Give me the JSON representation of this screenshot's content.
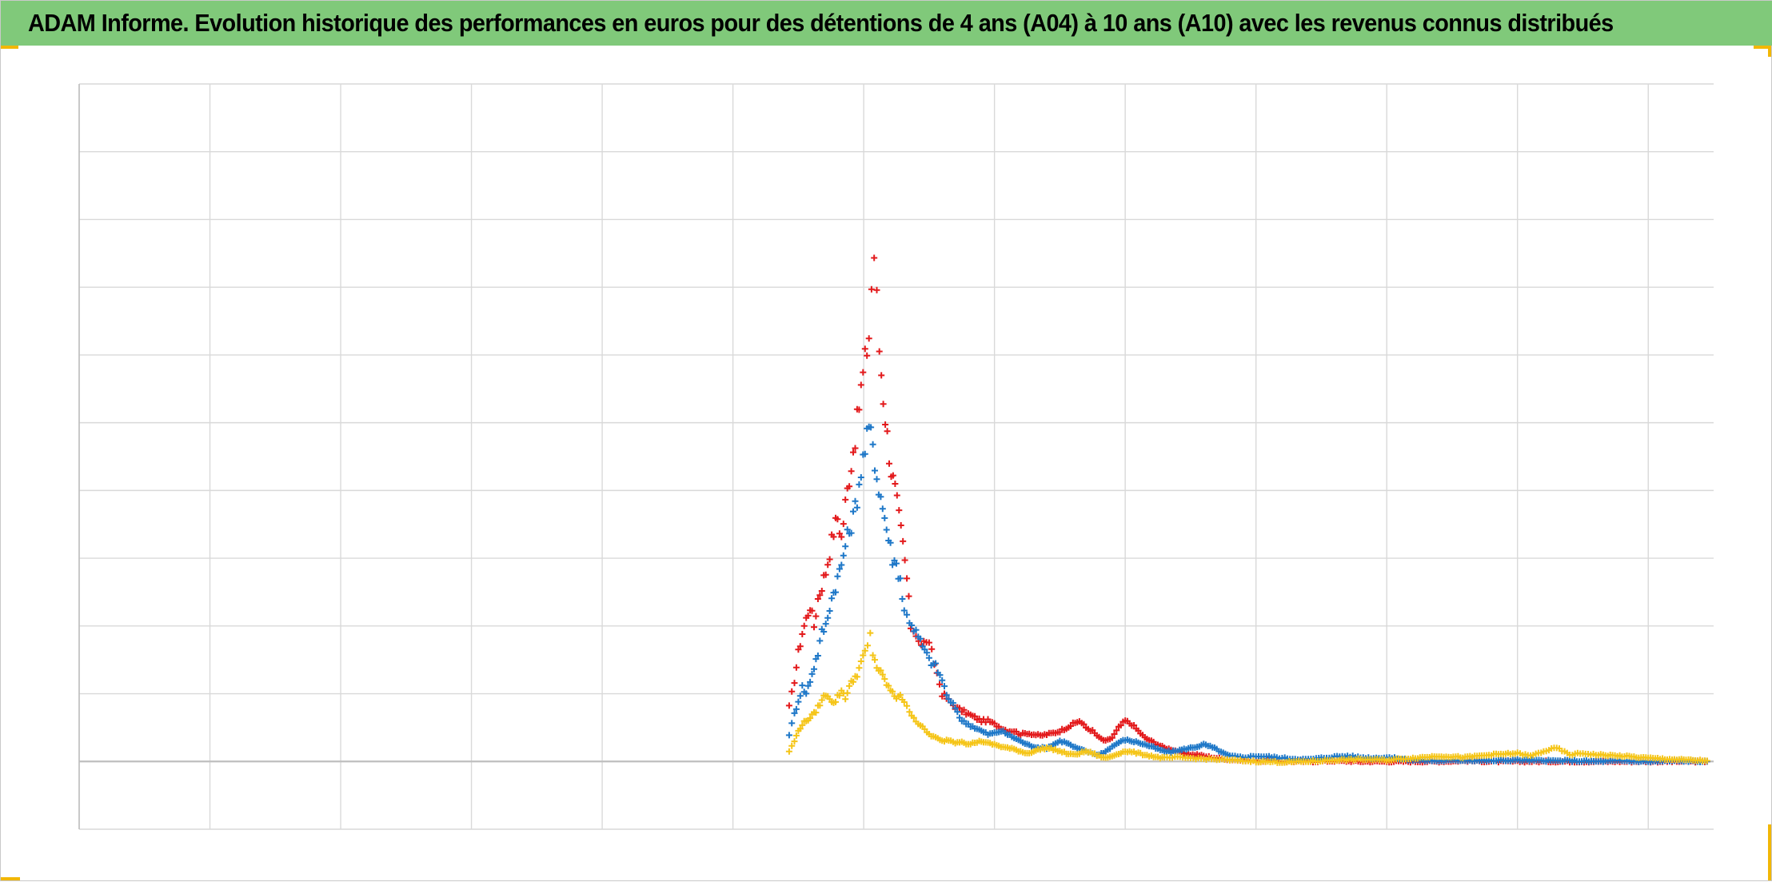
{
  "title": "ADAM Informe. Evolution historique des performances en euros pour des détentions de 4 ans (A04) à 10 ans (A10) avec les revenus connus distribués",
  "colors": {
    "title_background": "#80c97a",
    "grid": "#d9d9d9",
    "axis": "#bfbfbf",
    "accent_corner": "#f2b705"
  },
  "chart_data": {
    "type": "scatter",
    "marker": "plus",
    "grid": true,
    "legend": "none",
    "tick_labels": "none",
    "x_range": [
      0,
      12.5
    ],
    "y_range": [
      -1,
      10
    ],
    "x_gridlines": 12,
    "y_gridlines": 11,
    "zero_line_y": 0,
    "series": [
      {
        "color": "#e31a1c",
        "values": [
          [
            5.43,
            0.8
          ],
          [
            5.47,
            1.2
          ],
          [
            5.5,
            1.6
          ],
          [
            5.53,
            1.9
          ],
          [
            5.56,
            2.1
          ],
          [
            5.59,
            2.3
          ],
          [
            5.62,
            2.0
          ],
          [
            5.65,
            2.4
          ],
          [
            5.68,
            2.6
          ],
          [
            5.71,
            2.8
          ],
          [
            5.74,
            3.1
          ],
          [
            5.77,
            3.4
          ],
          [
            5.8,
            3.6
          ],
          [
            5.83,
            3.3
          ],
          [
            5.86,
            3.8
          ],
          [
            5.89,
            4.2
          ],
          [
            5.92,
            4.6
          ],
          [
            5.95,
            5.0
          ],
          [
            5.98,
            5.5
          ],
          [
            6.01,
            5.9
          ],
          [
            6.04,
            6.3
          ],
          [
            6.06,
            7.0
          ],
          [
            6.08,
            7.5
          ],
          [
            6.1,
            6.8
          ],
          [
            6.12,
            6.1
          ],
          [
            6.15,
            5.4
          ],
          [
            6.18,
            4.8
          ],
          [
            6.21,
            4.3
          ],
          [
            6.24,
            4.0
          ],
          [
            6.27,
            3.6
          ],
          [
            6.3,
            3.2
          ],
          [
            6.33,
            2.7
          ],
          [
            6.36,
            2.0
          ],
          [
            6.4,
            1.9
          ],
          [
            6.44,
            1.7
          ],
          [
            6.48,
            1.8
          ],
          [
            6.52,
            1.6
          ],
          [
            6.56,
            1.3
          ],
          [
            6.6,
            1.0
          ],
          [
            6.65,
            0.9
          ],
          [
            6.7,
            0.8
          ],
          [
            6.75,
            0.75
          ],
          [
            6.8,
            0.7
          ],
          [
            6.85,
            0.65
          ],
          [
            6.9,
            0.6
          ],
          [
            6.95,
            0.6
          ],
          [
            7.0,
            0.55
          ],
          [
            7.05,
            0.5
          ],
          [
            7.1,
            0.45
          ],
          [
            7.15,
            0.45
          ],
          [
            7.2,
            0.4
          ],
          [
            7.25,
            0.42
          ],
          [
            7.3,
            0.4
          ],
          [
            7.35,
            0.38
          ],
          [
            7.4,
            0.4
          ],
          [
            7.45,
            0.42
          ],
          [
            7.5,
            0.45
          ],
          [
            7.55,
            0.5
          ],
          [
            7.6,
            0.55
          ],
          [
            7.65,
            0.6
          ],
          [
            7.7,
            0.5
          ],
          [
            7.75,
            0.45
          ],
          [
            7.8,
            0.35
          ],
          [
            7.85,
            0.3
          ],
          [
            7.9,
            0.35
          ],
          [
            7.95,
            0.5
          ],
          [
            8.0,
            0.6
          ],
          [
            8.05,
            0.55
          ],
          [
            8.1,
            0.45
          ],
          [
            8.15,
            0.35
          ],
          [
            8.2,
            0.3
          ],
          [
            8.25,
            0.25
          ],
          [
            8.3,
            0.2
          ],
          [
            8.35,
            0.18
          ],
          [
            8.4,
            0.15
          ],
          [
            8.45,
            0.12
          ],
          [
            8.5,
            0.1
          ],
          [
            8.55,
            0.1
          ],
          [
            8.6,
            0.08
          ],
          [
            8.7,
            0.05
          ],
          [
            8.8,
            0.03
          ],
          [
            8.9,
            0.02
          ],
          [
            9.0,
            0.01
          ],
          [
            9.2,
            0.0
          ],
          [
            9.4,
            0.0
          ],
          [
            9.6,
            0.01
          ],
          [
            9.8,
            0.0
          ],
          [
            10.0,
            0.0
          ],
          [
            10.2,
            0.0
          ],
          [
            10.4,
            0.0
          ],
          [
            10.6,
            0.01
          ],
          [
            10.8,
            0.0
          ],
          [
            11.0,
            0.0
          ],
          [
            11.2,
            0.0
          ],
          [
            11.4,
            0.0
          ],
          [
            11.6,
            0.0
          ],
          [
            11.8,
            0.0
          ],
          [
            12.0,
            0.0
          ],
          [
            12.2,
            0.0
          ],
          [
            12.45,
            0.0
          ]
        ]
      },
      {
        "color": "#1f78c8",
        "values": [
          [
            5.43,
            0.4
          ],
          [
            5.47,
            0.7
          ],
          [
            5.5,
            0.9
          ],
          [
            5.53,
            1.1
          ],
          [
            5.56,
            1.0
          ],
          [
            5.59,
            1.2
          ],
          [
            5.62,
            1.4
          ],
          [
            5.65,
            1.6
          ],
          [
            5.68,
            1.9
          ],
          [
            5.71,
            2.0
          ],
          [
            5.74,
            2.3
          ],
          [
            5.77,
            2.5
          ],
          [
            5.8,
            2.7
          ],
          [
            5.83,
            2.9
          ],
          [
            5.86,
            3.2
          ],
          [
            5.89,
            3.4
          ],
          [
            5.92,
            3.6
          ],
          [
            5.95,
            3.9
          ],
          [
            5.98,
            4.3
          ],
          [
            6.01,
            4.6
          ],
          [
            6.04,
            4.9
          ],
          [
            6.07,
            4.7
          ],
          [
            6.1,
            4.2
          ],
          [
            6.13,
            3.9
          ],
          [
            6.16,
            3.6
          ],
          [
            6.19,
            3.3
          ],
          [
            6.22,
            3.0
          ],
          [
            6.25,
            2.9
          ],
          [
            6.28,
            2.7
          ],
          [
            6.31,
            2.2
          ],
          [
            6.35,
            2.1
          ],
          [
            6.4,
            1.9
          ],
          [
            6.45,
            1.7
          ],
          [
            6.5,
            1.5
          ],
          [
            6.55,
            1.4
          ],
          [
            6.6,
            1.2
          ],
          [
            6.65,
            0.9
          ],
          [
            6.7,
            0.8
          ],
          [
            6.75,
            0.6
          ],
          [
            6.8,
            0.55
          ],
          [
            6.85,
            0.5
          ],
          [
            6.9,
            0.45
          ],
          [
            6.95,
            0.4
          ],
          [
            7.0,
            0.42
          ],
          [
            7.05,
            0.45
          ],
          [
            7.1,
            0.4
          ],
          [
            7.15,
            0.35
          ],
          [
            7.2,
            0.3
          ],
          [
            7.25,
            0.25
          ],
          [
            7.3,
            0.22
          ],
          [
            7.35,
            0.2
          ],
          [
            7.4,
            0.2
          ],
          [
            7.45,
            0.25
          ],
          [
            7.5,
            0.3
          ],
          [
            7.55,
            0.28
          ],
          [
            7.6,
            0.22
          ],
          [
            7.65,
            0.18
          ],
          [
            7.7,
            0.15
          ],
          [
            7.75,
            0.12
          ],
          [
            7.8,
            0.1
          ],
          [
            7.85,
            0.15
          ],
          [
            7.9,
            0.22
          ],
          [
            7.95,
            0.28
          ],
          [
            8.0,
            0.32
          ],
          [
            8.05,
            0.3
          ],
          [
            8.1,
            0.28
          ],
          [
            8.15,
            0.25
          ],
          [
            8.2,
            0.22
          ],
          [
            8.25,
            0.18
          ],
          [
            8.3,
            0.15
          ],
          [
            8.35,
            0.14
          ],
          [
            8.4,
            0.16
          ],
          [
            8.45,
            0.18
          ],
          [
            8.5,
            0.2
          ],
          [
            8.55,
            0.22
          ],
          [
            8.6,
            0.25
          ],
          [
            8.65,
            0.22
          ],
          [
            8.7,
            0.18
          ],
          [
            8.75,
            0.12
          ],
          [
            8.8,
            0.08
          ],
          [
            8.9,
            0.06
          ],
          [
            9.0,
            0.08
          ],
          [
            9.1,
            0.07
          ],
          [
            9.2,
            0.05
          ],
          [
            9.3,
            0.04
          ],
          [
            9.4,
            0.03
          ],
          [
            9.5,
            0.05
          ],
          [
            9.6,
            0.07
          ],
          [
            9.7,
            0.08
          ],
          [
            9.8,
            0.06
          ],
          [
            9.9,
            0.05
          ],
          [
            10.0,
            0.06
          ],
          [
            10.1,
            0.04
          ],
          [
            10.2,
            0.02
          ],
          [
            10.4,
            0.01
          ],
          [
            10.6,
            0.02
          ],
          [
            10.8,
            0.01
          ],
          [
            11.0,
            0.02
          ],
          [
            11.2,
            0.01
          ],
          [
            11.4,
            0.01
          ],
          [
            11.6,
            0.0
          ],
          [
            11.8,
            0.01
          ],
          [
            12.0,
            0.0
          ],
          [
            12.2,
            0.01
          ],
          [
            12.45,
            0.0
          ]
        ]
      },
      {
        "color": "#f5c518",
        "values": [
          [
            5.43,
            0.15
          ],
          [
            5.47,
            0.3
          ],
          [
            5.5,
            0.45
          ],
          [
            5.53,
            0.55
          ],
          [
            5.56,
            0.6
          ],
          [
            5.59,
            0.65
          ],
          [
            5.62,
            0.7
          ],
          [
            5.65,
            0.8
          ],
          [
            5.68,
            0.9
          ],
          [
            5.71,
            1.0
          ],
          [
            5.74,
            0.95
          ],
          [
            5.77,
            0.85
          ],
          [
            5.8,
            0.95
          ],
          [
            5.83,
            1.05
          ],
          [
            5.86,
            0.95
          ],
          [
            5.89,
            1.1
          ],
          [
            5.92,
            1.2
          ],
          [
            5.95,
            1.3
          ],
          [
            5.98,
            1.45
          ],
          [
            6.01,
            1.6
          ],
          [
            6.03,
            1.7
          ],
          [
            6.05,
            1.85
          ],
          [
            6.07,
            1.6
          ],
          [
            6.1,
            1.4
          ],
          [
            6.13,
            1.3
          ],
          [
            6.16,
            1.2
          ],
          [
            6.19,
            1.1
          ],
          [
            6.22,
            1.0
          ],
          [
            6.25,
            0.95
          ],
          [
            6.28,
            1.0
          ],
          [
            6.31,
            0.85
          ],
          [
            6.35,
            0.75
          ],
          [
            6.4,
            0.6
          ],
          [
            6.45,
            0.5
          ],
          [
            6.5,
            0.4
          ],
          [
            6.55,
            0.35
          ],
          [
            6.6,
            0.3
          ],
          [
            6.65,
            0.32
          ],
          [
            6.7,
            0.28
          ],
          [
            6.75,
            0.3
          ],
          [
            6.8,
            0.25
          ],
          [
            6.85,
            0.28
          ],
          [
            6.9,
            0.3
          ],
          [
            6.95,
            0.27
          ],
          [
            7.0,
            0.25
          ],
          [
            7.05,
            0.22
          ],
          [
            7.1,
            0.2
          ],
          [
            7.15,
            0.18
          ],
          [
            7.2,
            0.15
          ],
          [
            7.25,
            0.12
          ],
          [
            7.3,
            0.15
          ],
          [
            7.35,
            0.18
          ],
          [
            7.4,
            0.2
          ],
          [
            7.45,
            0.18
          ],
          [
            7.5,
            0.15
          ],
          [
            7.55,
            0.12
          ],
          [
            7.6,
            0.1
          ],
          [
            7.65,
            0.12
          ],
          [
            7.7,
            0.15
          ],
          [
            7.75,
            0.12
          ],
          [
            7.8,
            0.08
          ],
          [
            7.85,
            0.05
          ],
          [
            7.9,
            0.08
          ],
          [
            7.95,
            0.12
          ],
          [
            8.0,
            0.15
          ],
          [
            8.05,
            0.14
          ],
          [
            8.1,
            0.12
          ],
          [
            8.15,
            0.1
          ],
          [
            8.2,
            0.08
          ],
          [
            8.25,
            0.06
          ],
          [
            8.3,
            0.05
          ],
          [
            8.4,
            0.06
          ],
          [
            8.5,
            0.05
          ],
          [
            8.6,
            0.04
          ],
          [
            8.7,
            0.03
          ],
          [
            8.8,
            0.02
          ],
          [
            8.9,
            0.01
          ],
          [
            9.0,
            0.0
          ],
          [
            9.2,
            -0.01
          ],
          [
            9.4,
            0.0
          ],
          [
            9.6,
            0.02
          ],
          [
            9.8,
            0.03
          ],
          [
            10.0,
            0.02
          ],
          [
            10.2,
            0.05
          ],
          [
            10.4,
            0.08
          ],
          [
            10.6,
            0.06
          ],
          [
            10.8,
            0.1
          ],
          [
            11.0,
            0.12
          ],
          [
            11.1,
            0.08
          ],
          [
            11.2,
            0.15
          ],
          [
            11.3,
            0.2
          ],
          [
            11.4,
            0.1
          ],
          [
            11.5,
            0.12
          ],
          [
            11.6,
            0.1
          ],
          [
            11.8,
            0.08
          ],
          [
            12.0,
            0.05
          ],
          [
            12.2,
            0.03
          ],
          [
            12.45,
            0.01
          ]
        ]
      }
    ]
  }
}
